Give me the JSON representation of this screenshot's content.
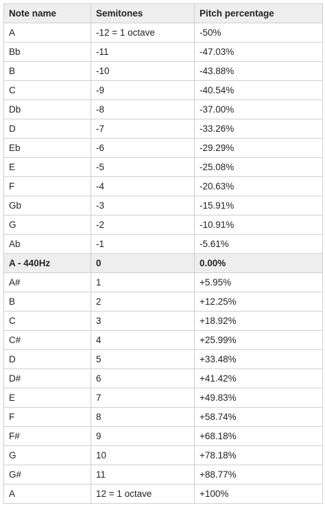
{
  "table": {
    "headers": [
      "Note name",
      "Semitones",
      "Pitch percentage"
    ],
    "rows": [
      {
        "note": "A",
        "semitones": "-12 = 1 octave",
        "pitch": "-50%",
        "highlight": false
      },
      {
        "note": "Bb",
        "semitones": "-11",
        "pitch": "-47.03%",
        "highlight": false
      },
      {
        "note": "B",
        "semitones": "-10",
        "pitch": "-43.88%",
        "highlight": false
      },
      {
        "note": "C",
        "semitones": "-9",
        "pitch": "-40.54%",
        "highlight": false
      },
      {
        "note": "Db",
        "semitones": "-8",
        "pitch": "-37.00%",
        "highlight": false
      },
      {
        "note": "D",
        "semitones": "-7",
        "pitch": "-33.26%",
        "highlight": false
      },
      {
        "note": "Eb",
        "semitones": "-6",
        "pitch": "-29.29%",
        "highlight": false
      },
      {
        "note": "E",
        "semitones": "-5",
        "pitch": "-25.08%",
        "highlight": false
      },
      {
        "note": "F",
        "semitones": "-4",
        "pitch": "-20.63%",
        "highlight": false
      },
      {
        "note": "Gb",
        "semitones": "-3",
        "pitch": "-15.91%",
        "highlight": false
      },
      {
        "note": "G",
        "semitones": "-2",
        "pitch": "-10.91%",
        "highlight": false
      },
      {
        "note": "Ab",
        "semitones": "-1",
        "pitch": "-5.61%",
        "highlight": false
      },
      {
        "note": "A - 440Hz",
        "semitones": "0",
        "pitch": "0.00%",
        "highlight": true
      },
      {
        "note": "A#",
        "semitones": "1",
        "pitch": "+5.95%",
        "highlight": false
      },
      {
        "note": "B",
        "semitones": "2",
        "pitch": "+12.25%",
        "highlight": false
      },
      {
        "note": "C",
        "semitones": "3",
        "pitch": "+18.92%",
        "highlight": false
      },
      {
        "note": "C#",
        "semitones": "4",
        "pitch": "+25.99%",
        "highlight": false
      },
      {
        "note": "D",
        "semitones": "5",
        "pitch": "+33.48%",
        "highlight": false
      },
      {
        "note": "D#",
        "semitones": "6",
        "pitch": "+41.42%",
        "highlight": false
      },
      {
        "note": "E",
        "semitones": "7",
        "pitch": "+49.83%",
        "highlight": false
      },
      {
        "note": "F",
        "semitones": "8",
        "pitch": "+58.74%",
        "highlight": false
      },
      {
        "note": "F#",
        "semitones": "9",
        "pitch": "+68.18%",
        "highlight": false
      },
      {
        "note": "G",
        "semitones": "10",
        "pitch": "+78.18%",
        "highlight": false
      },
      {
        "note": "G#",
        "semitones": "11",
        "pitch": "+88.77%",
        "highlight": false
      },
      {
        "note": "A",
        "semitones": "12 = 1 octave",
        "pitch": "+100%",
        "highlight": false
      }
    ]
  }
}
